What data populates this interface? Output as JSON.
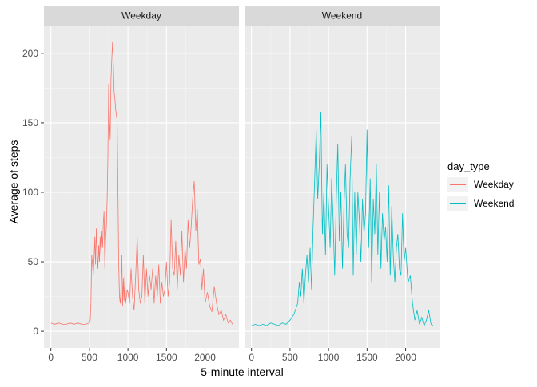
{
  "chart_data": {
    "type": "line",
    "facet": "day_type",
    "xlabel": "5-minute interval",
    "ylabel": "Average of steps",
    "xlim": [
      -90,
      2440
    ],
    "ylim": [
      -12,
      220
    ],
    "x_ticks": [
      0,
      500,
      1000,
      1500,
      2000
    ],
    "y_ticks": [
      0,
      50,
      100,
      150,
      200
    ],
    "grid": true,
    "legend_title": "day_type",
    "legend_position": "right",
    "panels": [
      {
        "label": "Weekday",
        "color": "#F8766D",
        "x": [
          0,
          50,
          100,
          150,
          200,
          250,
          300,
          350,
          400,
          450,
          500,
          510,
          520,
          530,
          540,
          550,
          560,
          570,
          580,
          590,
          600,
          610,
          620,
          630,
          640,
          650,
          660,
          670,
          680,
          690,
          700,
          710,
          720,
          730,
          740,
          750,
          760,
          770,
          780,
          790,
          800,
          810,
          820,
          830,
          840,
          850,
          860,
          870,
          880,
          890,
          900,
          910,
          920,
          930,
          940,
          950,
          960,
          970,
          980,
          990,
          1000,
          1020,
          1040,
          1060,
          1080,
          1100,
          1120,
          1140,
          1160,
          1180,
          1200,
          1220,
          1240,
          1260,
          1280,
          1300,
          1320,
          1340,
          1360,
          1380,
          1400,
          1420,
          1440,
          1460,
          1480,
          1500,
          1520,
          1540,
          1560,
          1580,
          1600,
          1620,
          1640,
          1660,
          1680,
          1700,
          1720,
          1740,
          1760,
          1780,
          1800,
          1820,
          1840,
          1860,
          1880,
          1900,
          1920,
          1940,
          1960,
          1980,
          2000,
          2030,
          2060,
          2090,
          2120,
          2150,
          2180,
          2210,
          2240,
          2270,
          2300,
          2330,
          2355
        ],
        "y": [
          6,
          5,
          6,
          5,
          5,
          6,
          5,
          6,
          5,
          5,
          6,
          8,
          20,
          55,
          48,
          40,
          52,
          68,
          48,
          74,
          56,
          45,
          62,
          50,
          68,
          55,
          72,
          60,
          78,
          86,
          45,
          68,
          75,
          95,
          125,
          178,
          150,
          138,
          182,
          196,
          208,
          192,
          172,
          168,
          160,
          155,
          152,
          100,
          50,
          25,
          20,
          30,
          55,
          18,
          38,
          22,
          40,
          20,
          25,
          30,
          28,
          20,
          45,
          25,
          15,
          40,
          68,
          30,
          20,
          25,
          55,
          20,
          45,
          25,
          40,
          30,
          45,
          20,
          40,
          25,
          48,
          20,
          35,
          25,
          30,
          50,
          25,
          35,
          80,
          45,
          40,
          65,
          30,
          55,
          40,
          72,
          35,
          60,
          45,
          80,
          60,
          75,
          95,
          108,
          72,
          88,
          48,
          52,
          30,
          45,
          20,
          28,
          18,
          14,
          32,
          20,
          12,
          15,
          8,
          12,
          6,
          8,
          5
        ],
        "line_width": 0.8
      },
      {
        "label": "Weekend",
        "color": "#00BFC4",
        "x": [
          0,
          50,
          100,
          150,
          200,
          250,
          300,
          350,
          400,
          450,
          500,
          550,
          600,
          620,
          640,
          660,
          680,
          700,
          720,
          740,
          760,
          780,
          800,
          820,
          840,
          860,
          880,
          900,
          920,
          940,
          960,
          980,
          1000,
          1020,
          1040,
          1060,
          1080,
          1100,
          1120,
          1140,
          1160,
          1180,
          1200,
          1220,
          1240,
          1260,
          1280,
          1300,
          1320,
          1340,
          1360,
          1380,
          1400,
          1420,
          1440,
          1460,
          1480,
          1500,
          1520,
          1540,
          1560,
          1580,
          1600,
          1620,
          1640,
          1660,
          1680,
          1700,
          1720,
          1740,
          1760,
          1780,
          1800,
          1820,
          1840,
          1860,
          1880,
          1900,
          1920,
          1940,
          1960,
          1980,
          2000,
          2030,
          2060,
          2090,
          2120,
          2150,
          2180,
          2210,
          2240,
          2270,
          2300,
          2330,
          2355
        ],
        "y": [
          4,
          5,
          4,
          5,
          4,
          6,
          5,
          4,
          6,
          5,
          8,
          12,
          20,
          35,
          25,
          45,
          20,
          40,
          55,
          35,
          60,
          30,
          75,
          110,
          145,
          95,
          120,
          158,
          70,
          100,
          55,
          120,
          90,
          60,
          110,
          80,
          40,
          95,
          135,
          65,
          100,
          45,
          90,
          120,
          70,
          60,
          110,
          140,
          40,
          100,
          55,
          100,
          80,
          50,
          95,
          70,
          85,
          145,
          60,
          110,
          35,
          95,
          70,
          120,
          55,
          100,
          45,
          85,
          65,
          75,
          50,
          105,
          40,
          90,
          55,
          35,
          60,
          70,
          45,
          40,
          85,
          50,
          60,
          35,
          40,
          20,
          8,
          15,
          5,
          10,
          4,
          8,
          15,
          5,
          4
        ],
        "line_width": 0.8
      }
    ]
  }
}
